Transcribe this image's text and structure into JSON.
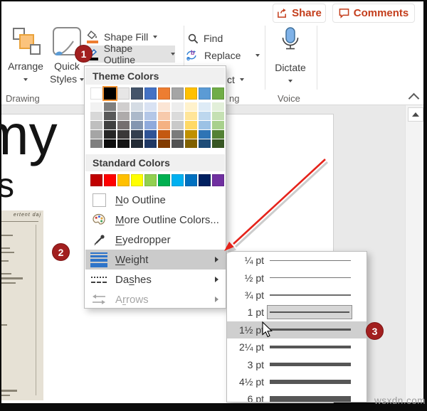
{
  "topbar": {
    "share": "Share",
    "comments": "Comments"
  },
  "ribbon": {
    "arrange_label": "Arrange",
    "quick_styles_label": "Quick Styles",
    "shape_fill_label": "Shape Fill",
    "shape_outline_label": "Shape Outline",
    "find_label": "Find",
    "replace_label": "Replace",
    "select_partial_label": "ct",
    "dictate_label": "Dictate",
    "group_labels": {
      "drawing": "Drawing",
      "editing_partial": "ng",
      "voice": "Voice"
    }
  },
  "shape_outline_menu": {
    "theme_colors_header": "Theme Colors",
    "standard_colors_header": "Standard Colors",
    "selected_index": 1,
    "theme_colors": [
      {
        "hex": "#FFFFFF",
        "variants": [
          "#F2F2F2",
          "#D8D8D8",
          "#BFBFBF",
          "#A5A5A5",
          "#7F7F7F"
        ]
      },
      {
        "hex": "#000000",
        "variants": [
          "#7F7F7F",
          "#595959",
          "#3F3F3F",
          "#262626",
          "#0D0D0D"
        ]
      },
      {
        "hex": "#E7E6E6",
        "variants": [
          "#D0CECE",
          "#AEABAB",
          "#756F6F",
          "#3A3838",
          "#161616"
        ]
      },
      {
        "hex": "#44546A",
        "variants": [
          "#D5DCE4",
          "#ACB9CA",
          "#8496B0",
          "#333F4F",
          "#222A35"
        ]
      },
      {
        "hex": "#4472C4",
        "variants": [
          "#D9E2F3",
          "#B4C7E7",
          "#8FAADC",
          "#2F5496",
          "#1F3864"
        ]
      },
      {
        "hex": "#ED7D31",
        "variants": [
          "#FBE5D5",
          "#F7CAAC",
          "#F4B183",
          "#C45911",
          "#823B00"
        ]
      },
      {
        "hex": "#A5A5A5",
        "variants": [
          "#EDEDED",
          "#DBDBDB",
          "#C9C9C9",
          "#7B7B7B",
          "#525252"
        ]
      },
      {
        "hex": "#FFC000",
        "variants": [
          "#FFF2CC",
          "#FFE599",
          "#FFD965",
          "#BF9000",
          "#7F6000"
        ]
      },
      {
        "hex": "#5B9BD5",
        "variants": [
          "#DEEBF6",
          "#BDD7EE",
          "#9CC2E5",
          "#2E74B5",
          "#1F4D78"
        ]
      },
      {
        "hex": "#70AD47",
        "variants": [
          "#E2EFD9",
          "#C5E0B3",
          "#A8D08D",
          "#538135",
          "#375623"
        ]
      }
    ],
    "standard_colors": [
      "#C00000",
      "#FF0000",
      "#FFC000",
      "#FFFF00",
      "#92D050",
      "#00B050",
      "#00B0F0",
      "#0070C0",
      "#002060",
      "#7030A0"
    ],
    "items": [
      {
        "label": "No Outline",
        "accel": 0
      },
      {
        "label": "More Outline Colors...",
        "accel": 0
      },
      {
        "label": "Eyedropper",
        "accel": 0
      },
      {
        "label": "Weight",
        "accel": 0,
        "highlighted": true,
        "has_submenu": true
      },
      {
        "label": "Dashes",
        "accel": 2,
        "has_submenu": true
      },
      {
        "label": "Arrows",
        "accel": 1,
        "disabled": true,
        "has_submenu": true
      }
    ]
  },
  "weight_submenu": {
    "items": [
      {
        "label": "¼ pt"
      },
      {
        "label": "½ pt"
      },
      {
        "label": "¾ pt"
      },
      {
        "label": "1 pt",
        "boxed": true
      },
      {
        "label": "1½ pt",
        "highlighted": true
      },
      {
        "label": "2¼ pt"
      },
      {
        "label": "3 pt"
      },
      {
        "label": "4½ pt"
      },
      {
        "label": "6 pt"
      }
    ]
  },
  "annotations": {
    "step1": "1",
    "step2": "2",
    "step3": "3"
  },
  "slide": {
    "heading_fragment": "my",
    "sub_fragment": "s",
    "document_caption": "ertent daj"
  },
  "watermark": "wsxdn.com",
  "colors": {
    "accent_red": "#C43E1C",
    "badge_red": "#A21F1F",
    "annotation_arrow": "#E5231B",
    "weight_icon_blue": "#2E74C9",
    "selected_swatch_ring": "#F29436",
    "mic_blue": "#7FB2E8"
  }
}
